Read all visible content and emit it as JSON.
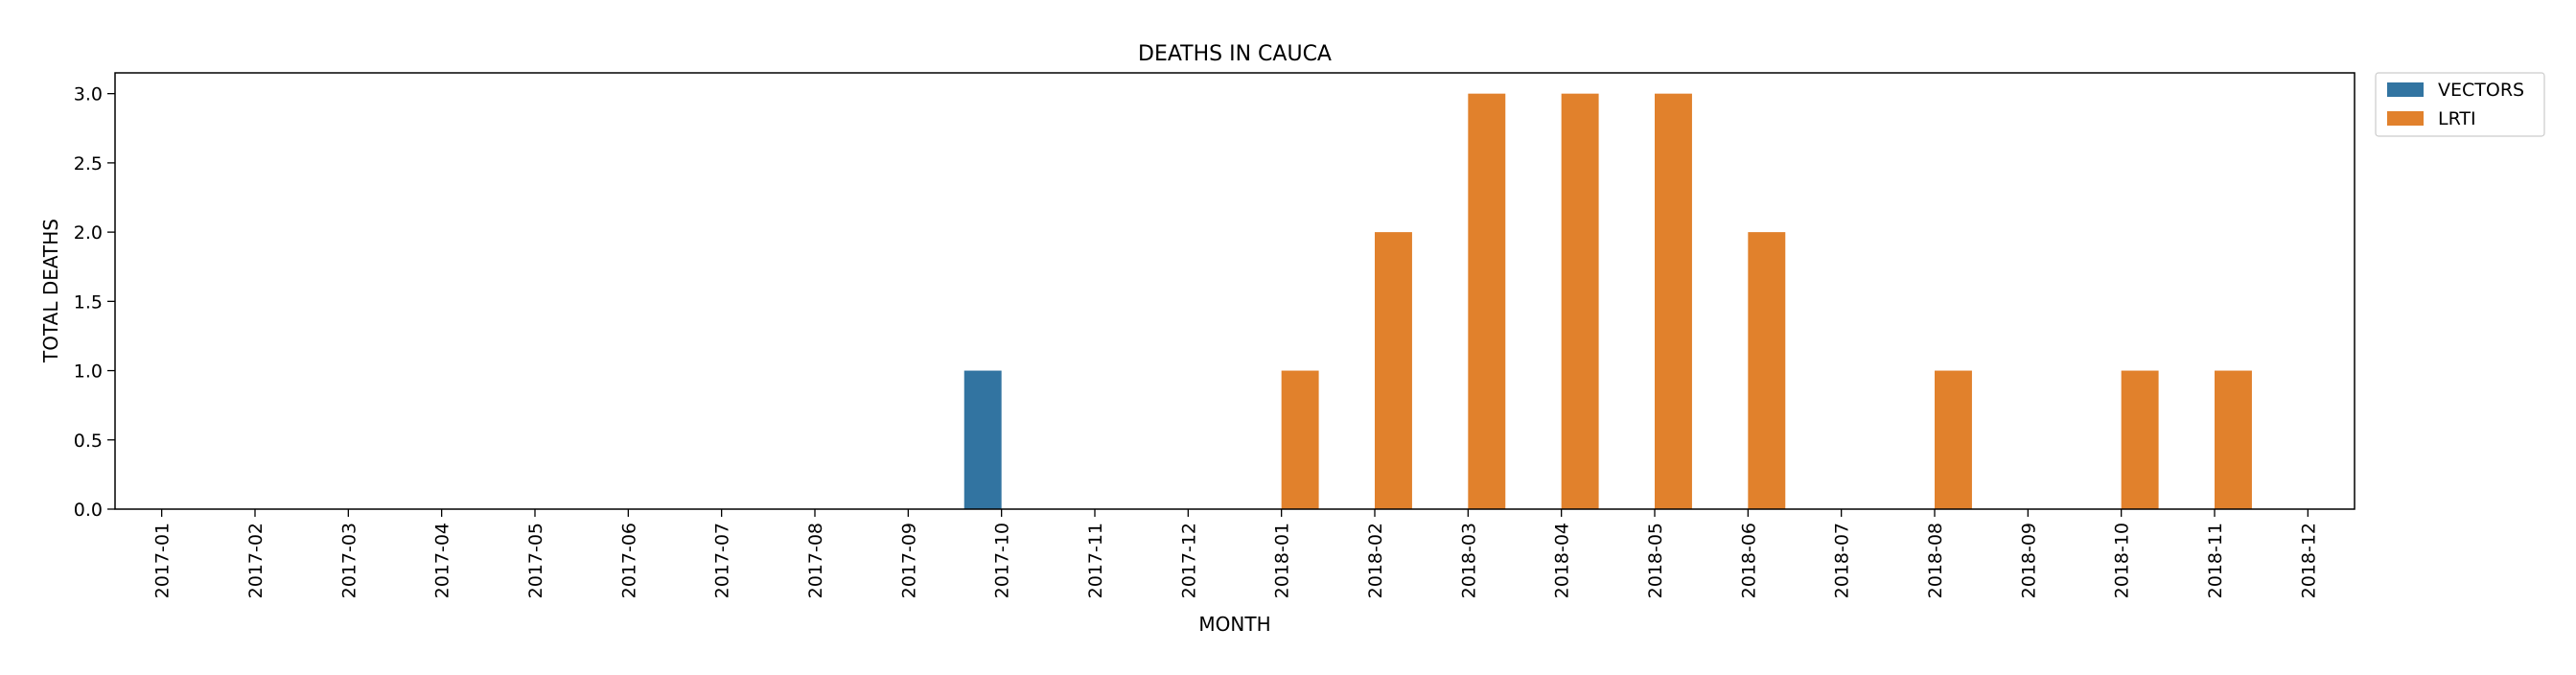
{
  "chart_data": {
    "type": "bar",
    "title": "DEATHS IN CAUCA",
    "xlabel": "MONTH",
    "ylabel": "TOTAL DEATHS",
    "ylim": [
      0,
      3.15
    ],
    "yticks": [
      "0.0",
      "0.5",
      "1.0",
      "1.5",
      "2.0",
      "2.5",
      "3.0"
    ],
    "grid": false,
    "legend_position": "outside-top-right",
    "categories": [
      "2017-01",
      "2017-02",
      "2017-03",
      "2017-04",
      "2017-05",
      "2017-06",
      "2017-07",
      "2017-08",
      "2017-09",
      "2017-10",
      "2017-11",
      "2017-12",
      "2018-01",
      "2018-02",
      "2018-03",
      "2018-04",
      "2018-05",
      "2018-06",
      "2018-07",
      "2018-08",
      "2018-09",
      "2018-10",
      "2018-11",
      "2018-12"
    ],
    "series": [
      {
        "name": "VECTORS",
        "color": "#3274a1",
        "values": [
          0,
          0,
          0,
          0,
          0,
          0,
          0,
          0,
          0,
          1,
          0,
          0,
          0,
          0,
          0,
          0,
          0,
          0,
          0,
          0,
          0,
          0,
          0,
          0
        ]
      },
      {
        "name": "LRTI",
        "color": "#e1812c",
        "values": [
          0,
          0,
          0,
          0,
          0,
          0,
          0,
          0,
          0,
          0,
          0,
          0,
          1,
          2,
          3,
          3,
          3,
          2,
          0,
          1,
          0,
          1,
          1,
          0
        ]
      }
    ]
  }
}
